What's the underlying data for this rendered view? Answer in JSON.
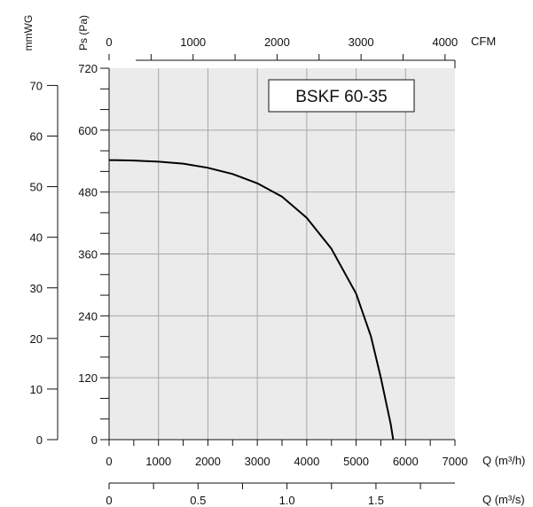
{
  "chart_data": {
    "type": "line",
    "title": "BSKF 60-35",
    "background_color": "#ebebeb",
    "grid": true,
    "x": [
      0,
      500,
      1000,
      1500,
      2000,
      2500,
      3000,
      3500,
      4000,
      4500,
      5000,
      5300,
      5500,
      5700,
      5750
    ],
    "series": [
      {
        "values": [
          542,
          541,
          539,
          535,
          527,
          515,
          497,
          471,
          430,
          370,
          283,
          200,
          120,
          30,
          0
        ]
      }
    ],
    "axes": {
      "x_bottom": {
        "label": "Q (m³/h)",
        "range": [
          0,
          7000
        ],
        "ticks": [
          "0",
          "1000",
          "2000",
          "3000",
          "4000",
          "5000",
          "6000",
          "7000"
        ]
      },
      "x_top": {
        "label": "CFM",
        "range": [
          0,
          4118
        ],
        "ticks": [
          "0",
          "1000",
          "2000",
          "3000",
          "4000"
        ]
      },
      "x_bottom2": {
        "label": "Q (m³/s)",
        "range": [
          0,
          1.944
        ],
        "ticks": [
          "0",
          "0.5",
          "1.0",
          "1.5"
        ]
      },
      "y_left_outer": {
        "label": "mmWG",
        "range": [
          0,
          73.4
        ],
        "ticks": [
          "0",
          "10",
          "20",
          "30",
          "40",
          "50",
          "60",
          "70"
        ]
      },
      "y_left_inner": {
        "label": "Ps (Pa)",
        "range": [
          0,
          720
        ],
        "ticks": [
          "0",
          "120",
          "240",
          "360",
          "480",
          "600",
          "720"
        ]
      }
    }
  }
}
